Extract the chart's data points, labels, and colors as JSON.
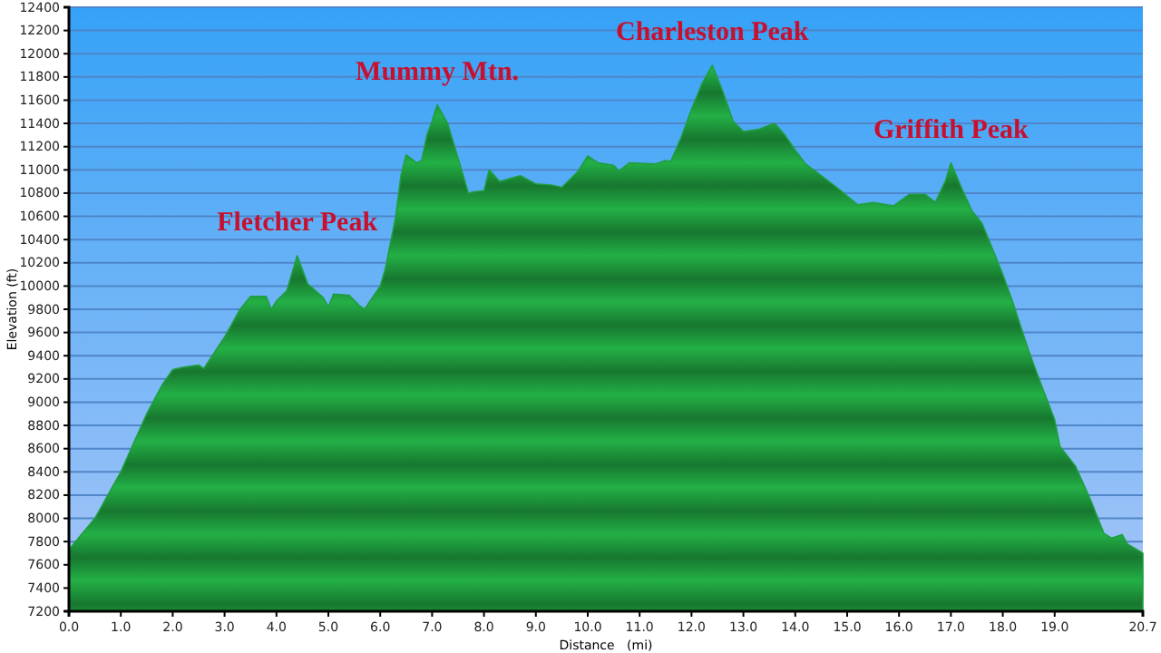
{
  "chart_data": {
    "type": "area",
    "xlabel": "Distance   (mi)",
    "ylabel": "Elevation (ft)",
    "x": [
      0,
      0.5,
      1.0,
      1.5,
      1.8,
      2.0,
      2.2,
      2.5,
      2.6,
      3.0,
      3.3,
      3.5,
      3.8,
      3.9,
      4.0,
      4.2,
      4.4,
      4.6,
      4.9,
      5.0,
      5.1,
      5.4,
      5.6,
      5.7,
      6.0,
      6.1,
      6.3,
      6.4,
      6.5,
      6.7,
      6.8,
      6.9,
      7.0,
      7.1,
      7.3,
      7.5,
      7.7,
      7.8,
      8.0,
      8.1,
      8.3,
      8.7,
      9.0,
      9.3,
      9.5,
      9.8,
      10.0,
      10.2,
      10.5,
      10.6,
      10.8,
      11.3,
      11.5,
      11.6,
      11.8,
      12.0,
      12.2,
      12.4,
      12.6,
      12.8,
      13.0,
      13.3,
      13.6,
      13.8,
      14.0,
      14.2,
      14.5,
      14.8,
      15.2,
      15.5,
      15.9,
      16.2,
      16.5,
      16.7,
      16.9,
      17.0,
      17.2,
      17.4,
      17.6,
      18.0,
      18.2,
      18.5,
      18.8,
      19.0,
      19.1,
      19.4,
      19.7,
      19.95,
      20.1,
      20.3,
      20.4,
      20.7
    ],
    "series": [
      {
        "color": "#1f9e3f",
        "values": [
          7730,
          8000,
          8400,
          8900,
          9150,
          9280,
          9300,
          9320,
          9290,
          9560,
          9800,
          9910,
          9910,
          9800,
          9870,
          9960,
          10260,
          10020,
          9900,
          9820,
          9930,
          9920,
          9830,
          9800,
          10000,
          10150,
          10600,
          10950,
          11130,
          11060,
          11080,
          11300,
          11420,
          11560,
          11400,
          11100,
          10800,
          10810,
          10820,
          11000,
          10900,
          10950,
          10880,
          10870,
          10850,
          10980,
          11120,
          11060,
          11040,
          10990,
          11060,
          11050,
          11080,
          11070,
          11280,
          11520,
          11740,
          11900,
          11680,
          11420,
          11330,
          11350,
          11400,
          11300,
          11170,
          11050,
          10950,
          10850,
          10700,
          10720,
          10690,
          10790,
          10790,
          10720,
          10910,
          11060,
          10850,
          10650,
          10540,
          10100,
          9850,
          9440,
          9080,
          8850,
          8620,
          8450,
          8150,
          7870,
          7830,
          7860,
          7780,
          7700
        ]
      }
    ],
    "xlim": [
      0,
      20.7
    ],
    "ylim": [
      7200,
      12400
    ],
    "xticks": [
      {
        "value": 0,
        "label": "0.0"
      },
      {
        "value": 1,
        "label": "1.0"
      },
      {
        "value": 2,
        "label": "2.0"
      },
      {
        "value": 3,
        "label": "3.0"
      },
      {
        "value": 4,
        "label": "4.0"
      },
      {
        "value": 5,
        "label": "5.0"
      },
      {
        "value": 6,
        "label": "6.0"
      },
      {
        "value": 7,
        "label": "7.0"
      },
      {
        "value": 8,
        "label": "8.0"
      },
      {
        "value": 9,
        "label": "9.0"
      },
      {
        "value": 10,
        "label": "10.0"
      },
      {
        "value": 11,
        "label": "11.0"
      },
      {
        "value": 12,
        "label": "12.0"
      },
      {
        "value": 13,
        "label": "13.0"
      },
      {
        "value": 14,
        "label": "14.0"
      },
      {
        "value": 15,
        "label": "15.0"
      },
      {
        "value": 16,
        "label": "16.0"
      },
      {
        "value": 17,
        "label": "17.0"
      },
      {
        "value": 18,
        "label": "18.0"
      },
      {
        "value": 19,
        "label": "19.0"
      },
      20.7
    ],
    "yticks": [
      7200,
      7400,
      7600,
      7800,
      8000,
      8200,
      8400,
      8600,
      8800,
      9000,
      9200,
      9400,
      9600,
      9800,
      10000,
      10200,
      10400,
      10600,
      10800,
      11000,
      11200,
      11400,
      11600,
      11800,
      12000,
      12200,
      12400
    ],
    "grid": "y",
    "annotations": [
      {
        "text": "Fletcher Peak",
        "x": 4.4,
        "y": 10260
      },
      {
        "text": "Mummy Mtn.",
        "x": 7.1,
        "y": 11560
      },
      {
        "text": "Charleston Peak",
        "x": 12.4,
        "y": 11900
      },
      {
        "text": "Griffith Peak",
        "x": 17.0,
        "y": 11060
      }
    ]
  }
}
